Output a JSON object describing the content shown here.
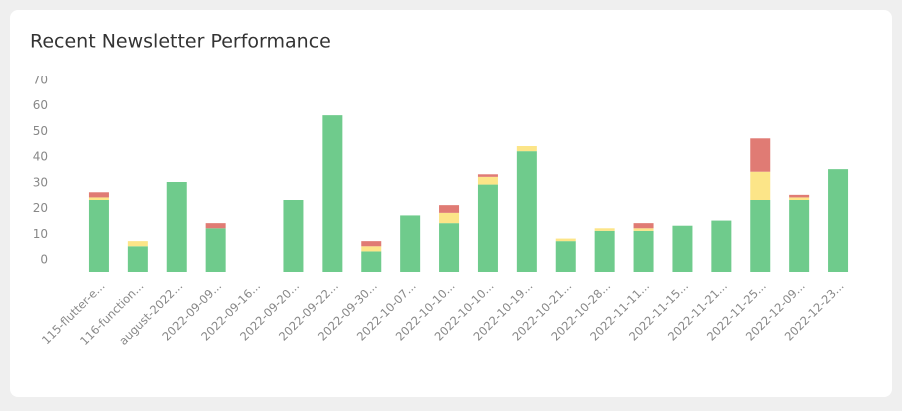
{
  "chart_data": {
    "type": "stacked_bar",
    "title": "Recent Newsletter Performance",
    "categories": [
      "115-flutter-e...",
      "116-function...",
      "august-2022...",
      "2022-09-09...",
      "2022-09-16...",
      "2022-09-20...",
      "2022-09-22...",
      "2022-09-30...",
      "2022-10-07...",
      "2022-10-10...",
      "2022-10-10...",
      "2022-10-19...",
      "2022-10-21...",
      "2022-10-28...",
      "2022-11-11...",
      "2022-11-15...",
      "2022-11-21...",
      "2022-11-25...",
      "2022-12-09...",
      "2022-12-23..."
    ],
    "series": [
      {
        "color": "#6fcb8c",
        "values": [
          28,
          10,
          35,
          17,
          0,
          28,
          61,
          8,
          22,
          19,
          34,
          47,
          12,
          16,
          16,
          18,
          20,
          28,
          28,
          40
        ]
      },
      {
        "color": "#fce588",
        "values": [
          1,
          2,
          0,
          0,
          0,
          0,
          0,
          2,
          0,
          4,
          3,
          2,
          1,
          1,
          1,
          0,
          0,
          11,
          1,
          0
        ]
      },
      {
        "color": "#e07b74",
        "values": [
          2,
          0,
          0,
          2,
          0,
          0,
          0,
          2,
          0,
          3,
          1,
          0,
          0,
          0,
          2,
          0,
          0,
          13,
          1,
          0
        ]
      }
    ],
    "ylim": [
      0,
      70
    ],
    "yticks": [
      0,
      10,
      20,
      30,
      40,
      50,
      60,
      70
    ]
  }
}
